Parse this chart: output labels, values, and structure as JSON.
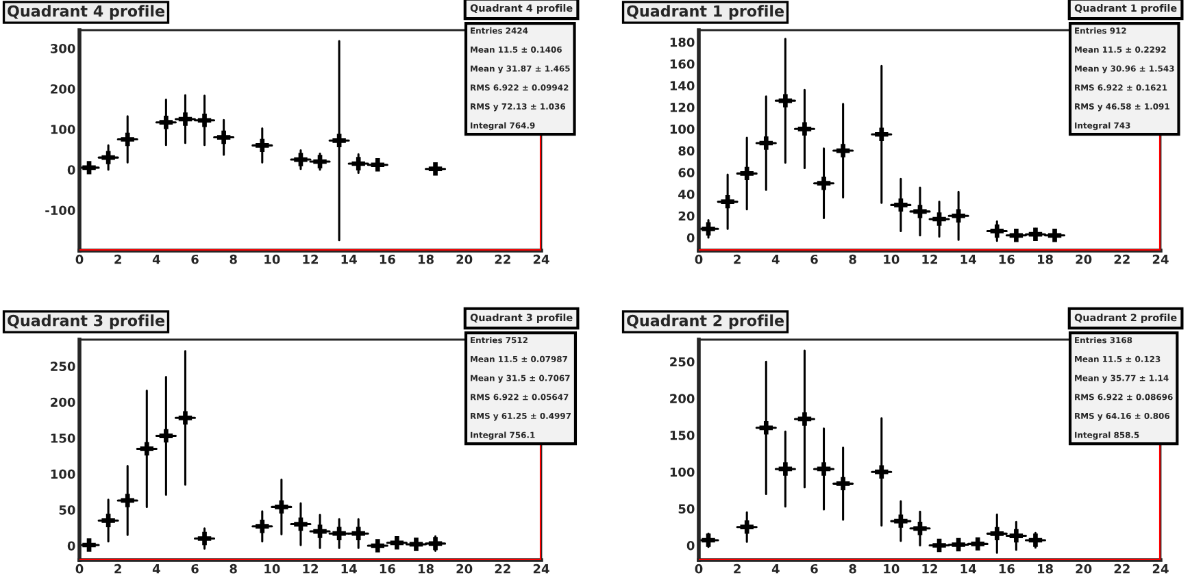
{
  "chart_data": [
    {
      "type": "scatter",
      "title": "Quadrant 4 profile",
      "marker": "cross",
      "grid": false,
      "legend": false,
      "color": "#000000",
      "x": [
        0.5,
        1.5,
        2.5,
        4.5,
        5.5,
        6.5,
        7.5,
        9.5,
        11.5,
        12.5,
        13.5,
        14.5,
        15.5,
        18.5
      ],
      "values": [
        5,
        30,
        75,
        117,
        125,
        122,
        80,
        60,
        25,
        20,
        72,
        15,
        12,
        2
      ],
      "errors": [
        10,
        30,
        57,
        56,
        59,
        61,
        43,
        42,
        23,
        20,
        246,
        23,
        12,
        5
      ],
      "xerrors": [
        0.5,
        0.5,
        0.5,
        0.5,
        0.5,
        0.5,
        0.5,
        0.5,
        0.5,
        0.5,
        0.5,
        0.5,
        0.5,
        0.5
      ],
      "xlim": [
        0,
        24
      ],
      "ylim": [
        -200,
        345
      ],
      "xticks": [
        0,
        2,
        4,
        6,
        8,
        10,
        12,
        14,
        16,
        18,
        20,
        22,
        24
      ],
      "yticks": [
        -100,
        0,
        100,
        200,
        300
      ],
      "ref_lines": [
        {
          "axis": "x",
          "value": 24,
          "color": "#ff0000"
        },
        {
          "axis": "y",
          "value": -200,
          "color": "#ff0000"
        }
      ],
      "annotations": [
        "Quadrant 4 profile",
        "Entries 2424",
        "Mean 11.5 ± 0.1406",
        "Mean y 31.87 ± 1.465",
        "RMS 6.922 ± 0.09942",
        "RMS y 72.13 ± 1.036",
        "Integral 764.9"
      ]
    },
    {
      "type": "scatter",
      "title": "Quadrant 1 profile",
      "marker": "cross",
      "grid": false,
      "legend": false,
      "color": "#000000",
      "x": [
        0.5,
        1.5,
        2.5,
        3.5,
        4.5,
        5.5,
        6.5,
        7.5,
        9.5,
        10.5,
        11.5,
        12.5,
        13.5,
        15.5,
        16.5,
        17.5,
        18.5
      ],
      "values": [
        8,
        33,
        59,
        87,
        126,
        100,
        50,
        80,
        95,
        30,
        24,
        17,
        20,
        6,
        2,
        3,
        2
      ],
      "errors": [
        8,
        25,
        33,
        43,
        57,
        36,
        32,
        43,
        63,
        24,
        22,
        16,
        22,
        9,
        3,
        5,
        3
      ],
      "xerrors": [
        0.5,
        0.5,
        0.5,
        0.5,
        0.5,
        0.5,
        0.5,
        0.5,
        0.5,
        0.5,
        0.5,
        0.5,
        0.5,
        0.5,
        0.5,
        0.5,
        0.5
      ],
      "xlim": [
        0,
        24
      ],
      "ylim": [
        -12,
        191
      ],
      "xticks": [
        0,
        2,
        4,
        6,
        8,
        10,
        12,
        14,
        16,
        18,
        20,
        22,
        24
      ],
      "yticks": [
        0,
        20,
        40,
        60,
        80,
        100,
        120,
        140,
        160,
        180
      ],
      "ref_lines": [
        {
          "axis": "x",
          "value": 24,
          "color": "#ff0000"
        },
        {
          "axis": "y",
          "value": -12,
          "color": "#ff0000"
        }
      ],
      "annotations": [
        "Quadrant 1 profile",
        "Entries 912",
        "Mean 11.5 ± 0.2292",
        "Mean y 30.96 ± 1.543",
        "RMS 6.922 ± 0.1621",
        "RMS y 46.58 ± 1.091",
        "Integral 743"
      ]
    },
    {
      "type": "scatter",
      "title": "Quadrant 3 profile",
      "marker": "cross",
      "grid": false,
      "legend": false,
      "color": "#000000",
      "x": [
        0.5,
        1.5,
        2.5,
        3.5,
        4.5,
        5.5,
        6.5,
        9.5,
        10.5,
        11.5,
        12.5,
        13.5,
        14.5,
        15.5,
        16.5,
        17.5,
        18.5
      ],
      "values": [
        1,
        35,
        63,
        135,
        153,
        178,
        10,
        27,
        54,
        30,
        20,
        17,
        17,
        0,
        4,
        2,
        3
      ],
      "errors": [
        3,
        29,
        48,
        81,
        82,
        93,
        14,
        21,
        38,
        29,
        23,
        20,
        20,
        4,
        6,
        5,
        10
      ],
      "xerrors": [
        0.5,
        0.5,
        0.5,
        0.5,
        0.5,
        0.5,
        0.5,
        0.5,
        0.5,
        0.5,
        0.5,
        0.5,
        0.5,
        0.5,
        0.5,
        0.5,
        0.5
      ],
      "xlim": [
        0,
        24
      ],
      "ylim": [
        -20,
        287
      ],
      "xticks": [
        0,
        2,
        4,
        6,
        8,
        10,
        12,
        14,
        16,
        18,
        20,
        22,
        24
      ],
      "yticks": [
        0,
        50,
        100,
        150,
        200,
        250
      ],
      "ref_lines": [
        {
          "axis": "x",
          "value": 24,
          "color": "#ff0000"
        },
        {
          "axis": "y",
          "value": -20,
          "color": "#ff0000"
        }
      ],
      "annotations": [
        "Quadrant 3 profile",
        "Entries 7512",
        "Mean 11.5 ± 0.07987",
        "Mean y 31.5 ± 0.7067",
        "RMS 6.922 ± 0.05647",
        "RMS y 61.25 ± 0.4997",
        "Integral 756.1"
      ]
    },
    {
      "type": "scatter",
      "title": "Quadrant 2 profile",
      "marker": "cross",
      "grid": false,
      "legend": false,
      "color": "#000000",
      "x": [
        0.5,
        2.5,
        3.5,
        4.5,
        5.5,
        6.5,
        7.5,
        9.5,
        10.5,
        11.5,
        12.5,
        13.5,
        14.5,
        15.5,
        16.5,
        17.5
      ],
      "values": [
        7,
        25,
        160,
        104,
        172,
        104,
        84,
        100,
        33,
        23,
        0,
        1,
        2,
        16,
        13,
        7
      ],
      "errors": [
        9,
        20,
        90,
        51,
        93,
        55,
        49,
        73,
        27,
        23,
        3,
        2,
        5,
        26,
        19,
        10
      ],
      "xerrors": [
        0.5,
        0.5,
        0.5,
        0.5,
        0.5,
        0.5,
        0.5,
        0.5,
        0.5,
        0.5,
        0.5,
        0.5,
        0.5,
        0.5,
        0.5,
        0.5
      ],
      "xlim": [
        0,
        24
      ],
      "ylim": [
        -20,
        280
      ],
      "xticks": [
        0,
        2,
        4,
        6,
        8,
        10,
        12,
        14,
        16,
        18,
        20,
        22,
        24
      ],
      "yticks": [
        0,
        50,
        100,
        150,
        200,
        250
      ],
      "ref_lines": [
        {
          "axis": "x",
          "value": 24,
          "color": "#ff0000"
        },
        {
          "axis": "y",
          "value": -20,
          "color": "#ff0000"
        }
      ],
      "annotations": [
        "Quadrant 2 profile",
        "Entries 3168",
        "Mean 11.5 ± 0.123",
        "Mean y 35.77 ± 1.14",
        "RMS 6.922 ± 0.08696",
        "RMS y 64.16 ± 0.806",
        "Integral 858.5"
      ]
    }
  ]
}
